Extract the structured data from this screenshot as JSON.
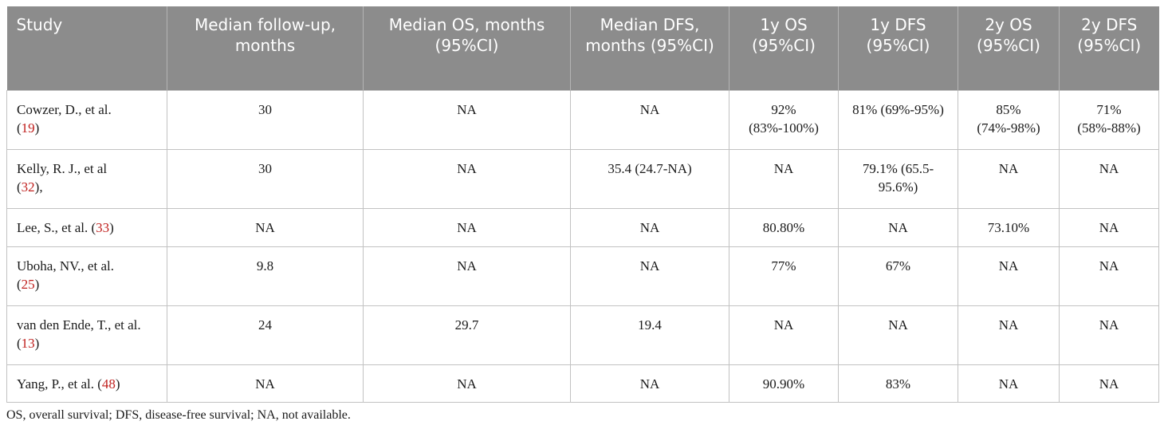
{
  "table": {
    "headers": [
      "Study",
      "Median follow-up, months",
      "Median OS, months (95%CI)",
      "Median DFS, months (95%CI)",
      "1y OS (95%CI)",
      "1y DFS (95%CI)",
      "2y OS (95%CI)",
      "2y DFS (95%CI)"
    ],
    "rows": [
      {
        "study": "Cowzer, D., et al.",
        "ref": "19",
        "ref_suffix": "",
        "cells": [
          "30",
          "NA",
          "NA",
          "92% (83%-100%)",
          "81% (69%-95%)",
          "85% (74%-98%)",
          "71% (58%-88%)"
        ]
      },
      {
        "study": "Kelly, R. J., et al",
        "ref": "32",
        "ref_suffix": ",",
        "cells": [
          "30",
          "NA",
          "35.4 (24.7-NA)",
          "NA",
          "79.1% (65.5-95.6%)",
          "NA",
          "NA"
        ]
      },
      {
        "study": "Lee, S., et al.",
        "ref": "33",
        "ref_suffix": "",
        "cells": [
          "NA",
          "NA",
          "NA",
          "80.80%",
          "NA",
          "73.10%",
          "NA"
        ]
      },
      {
        "study": "Uboha, NV., et al.",
        "ref": "25",
        "ref_suffix": "",
        "cells": [
          "9.8",
          "NA",
          "NA",
          "77%",
          "67%",
          "NA",
          "NA"
        ]
      },
      {
        "study": "van den Ende, T., et al.",
        "ref": "13",
        "ref_suffix": "",
        "cells": [
          "24",
          "29.7",
          "19.4",
          "NA",
          "NA",
          "NA",
          "NA"
        ]
      },
      {
        "study": "Yang, P., et al.",
        "ref": "48",
        "ref_suffix": "",
        "cells": [
          "NA",
          "NA",
          "NA",
          "90.90%",
          "83%",
          "NA",
          "NA"
        ]
      }
    ]
  },
  "footnote": "OS, overall survival; DFS, disease-free survival; NA, not available.",
  "colors": {
    "header_bg": "#8c8c8c",
    "header_text": "#ffffff",
    "reference_link": "#c0201e",
    "grid": "#c2c2c2"
  }
}
